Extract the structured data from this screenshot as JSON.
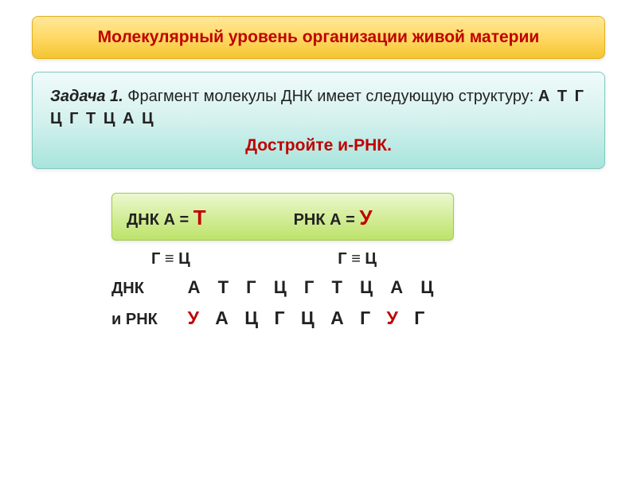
{
  "title": "Молекулярный  уровень  организации  живой материи",
  "task": {
    "label": "Задача 1.",
    "text_part1": " Фрагмент молекулы ДНК имеет следующую структуру:    ",
    "sequence": "А Т Г Ц Г Т Ц А Ц",
    "instruction": "Достройте и-РНК."
  },
  "rules": {
    "dna_label": "ДНК    А = ",
    "dna_pair": "Т",
    "rna_label": "РНК    А = ",
    "rna_pair": "У",
    "gc_left": "Г ≡  Ц",
    "gc_right": "Г ≡ Ц"
  },
  "answer": {
    "dna_label": "ДНК",
    "dna_seq": "А  Т  Г  Ц  Г  Т  Ц  А  Ц",
    "rna_label": "и РНК",
    "rna_parts": [
      {
        "t": "У ",
        "red": true
      },
      {
        "t": " А Ц  Г  Ц А  Г  ",
        "red": false
      },
      {
        "t": "У",
        "red": true
      },
      {
        "t": "  Г",
        "red": false
      }
    ]
  },
  "colors": {
    "title_bg_top": "#ffe89a",
    "title_bg_bottom": "#f4c430",
    "title_text": "#c00000",
    "task_bg_top": "#f0fbfb",
    "task_bg_bottom": "#a8e4dc",
    "rule_bg_top": "#ecf8d0",
    "rule_bg_bottom": "#bde36a",
    "red": "#c00000",
    "text": "#222222"
  },
  "fonts": {
    "title_size": 21,
    "body_size": 20,
    "big_red_size": 26,
    "seq_size": 22
  }
}
